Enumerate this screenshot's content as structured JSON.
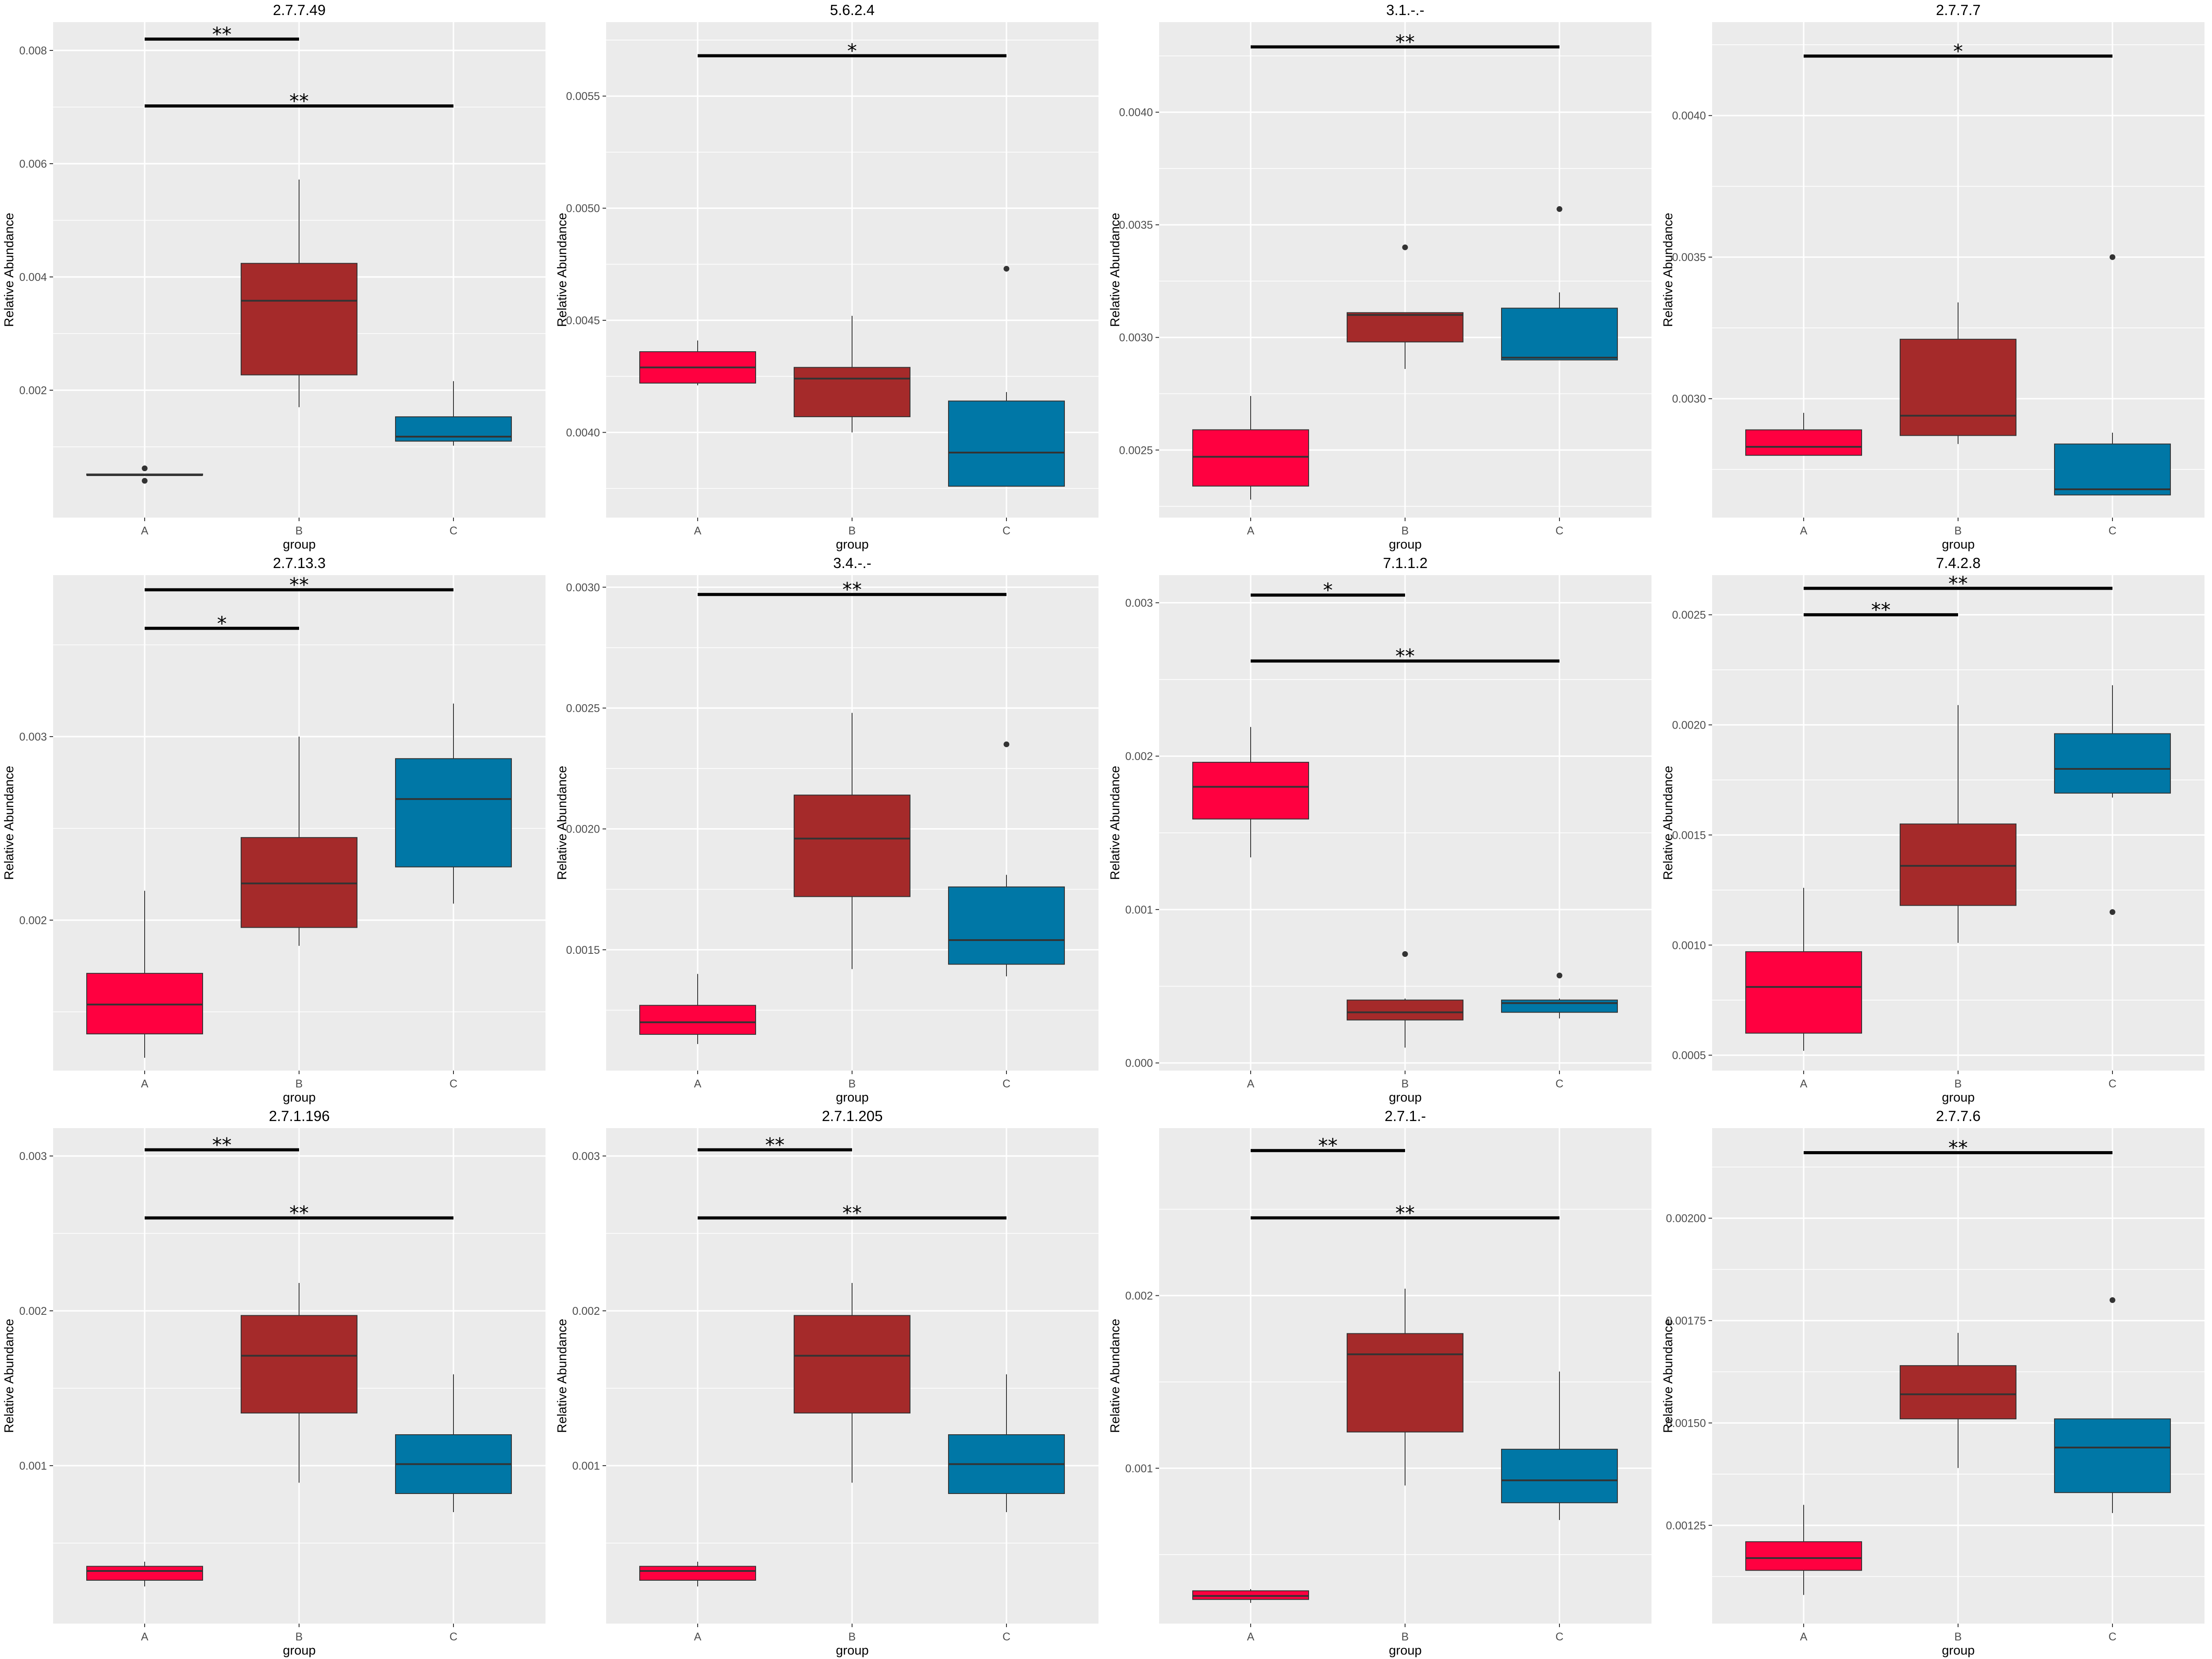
{
  "colors": {
    "A": "#ff0040",
    "B": "#a52a2a",
    "C": "#0077a6",
    "panel_bg": "#ebebeb",
    "grid": "#ffffff",
    "text": "#4d4d4d",
    "line": "#000000"
  },
  "x_label": "group",
  "y_label": "Relative Abundance",
  "chart_data": [
    {
      "type": "box",
      "title": "2.7.7.49",
      "categories": [
        "A",
        "B",
        "C"
      ],
      "ylim": [
        -0.00025,
        0.0085
      ],
      "yticks": [
        {
          "v": 0.002,
          "label": "0.002"
        },
        {
          "v": 0.004,
          "label": "0.004"
        },
        {
          "v": 0.006,
          "label": "0.006"
        },
        {
          "v": 0.008,
          "label": "0.008"
        }
      ],
      "boxes": [
        {
          "group": "A",
          "min": 0.0005,
          "q1": 0.0005,
          "median": 0.0005,
          "q3": 0.00052,
          "max": 0.00052,
          "outliers": [
            0.00062,
            0.0004
          ]
        },
        {
          "group": "B",
          "min": 0.0017,
          "q1": 0.00227,
          "median": 0.00358,
          "q3": 0.00424,
          "max": 0.00572,
          "outliers": []
        },
        {
          "group": "C",
          "min": 0.00102,
          "q1": 0.0011,
          "median": 0.00118,
          "q3": 0.00153,
          "max": 0.00216,
          "outliers": []
        }
      ],
      "brackets": [
        {
          "from": "A",
          "to": "B",
          "y": 0.0082,
          "label": "**"
        },
        {
          "from": "A",
          "to": "C",
          "y": 0.00702,
          "label": "**"
        }
      ]
    },
    {
      "type": "box",
      "title": "5.6.2.4",
      "categories": [
        "A",
        "B",
        "C"
      ],
      "ylim": [
        0.00362,
        0.00583
      ],
      "yticks": [
        {
          "v": 0.004,
          "label": "0.0040"
        },
        {
          "v": 0.0045,
          "label": "0.0045"
        },
        {
          "v": 0.005,
          "label": "0.0050"
        },
        {
          "v": 0.0055,
          "label": "0.0055"
        }
      ],
      "boxes": [
        {
          "group": "A",
          "min": 0.00421,
          "q1": 0.00422,
          "median": 0.00429,
          "q3": 0.00436,
          "max": 0.00441,
          "outliers": []
        },
        {
          "group": "B",
          "min": 0.004,
          "q1": 0.00407,
          "median": 0.00424,
          "q3": 0.00429,
          "max": 0.00452,
          "outliers": []
        },
        {
          "group": "C",
          "min": 0.00376,
          "q1": 0.00376,
          "median": 0.00391,
          "q3": 0.00414,
          "max": 0.00418,
          "outliers": [
            0.00473
          ]
        }
      ],
      "brackets": [
        {
          "from": "A",
          "to": "C",
          "y": 0.00568,
          "label": "*"
        }
      ]
    },
    {
      "type": "box",
      "title": "3.1.-.-",
      "categories": [
        "A",
        "B",
        "C"
      ],
      "ylim": [
        0.0022,
        0.0044
      ],
      "yticks": [
        {
          "v": 0.0025,
          "label": "0.0025"
        },
        {
          "v": 0.003,
          "label": "0.0030"
        },
        {
          "v": 0.0035,
          "label": "0.0035"
        },
        {
          "v": 0.004,
          "label": "0.0040"
        }
      ],
      "boxes": [
        {
          "group": "A",
          "min": 0.00228,
          "q1": 0.00234,
          "median": 0.00247,
          "q3": 0.00259,
          "max": 0.00274,
          "outliers": []
        },
        {
          "group": "B",
          "min": 0.00286,
          "q1": 0.00298,
          "median": 0.0031,
          "q3": 0.00311,
          "max": 0.00311,
          "outliers": [
            0.0034
          ]
        },
        {
          "group": "C",
          "min": 0.0029,
          "q1": 0.0029,
          "median": 0.00291,
          "q3": 0.00313,
          "max": 0.0032,
          "outliers": [
            0.00357
          ]
        }
      ],
      "brackets": [
        {
          "from": "A",
          "to": "C",
          "y": 0.00429,
          "label": "**"
        }
      ]
    },
    {
      "type": "box",
      "title": "2.7.7.7",
      "categories": [
        "A",
        "B",
        "C"
      ],
      "ylim": [
        0.00258,
        0.00433
      ],
      "yticks": [
        {
          "v": 0.003,
          "label": "0.0030"
        },
        {
          "v": 0.0035,
          "label": "0.0035"
        },
        {
          "v": 0.004,
          "label": "0.0040"
        }
      ],
      "boxes": [
        {
          "group": "A",
          "min": 0.0028,
          "q1": 0.0028,
          "median": 0.00283,
          "q3": 0.00289,
          "max": 0.00295,
          "outliers": []
        },
        {
          "group": "B",
          "min": 0.00284,
          "q1": 0.00287,
          "median": 0.00294,
          "q3": 0.00321,
          "max": 0.00334,
          "outliers": []
        },
        {
          "group": "C",
          "min": 0.00266,
          "q1": 0.00266,
          "median": 0.00268,
          "q3": 0.00284,
          "max": 0.00288,
          "outliers": [
            0.0035
          ]
        }
      ],
      "brackets": [
        {
          "from": "A",
          "to": "C",
          "y": 0.00421,
          "label": "*"
        }
      ]
    },
    {
      "type": "box",
      "title": "2.7.13.3",
      "categories": [
        "A",
        "B",
        "C"
      ],
      "ylim": [
        0.00118,
        0.00388
      ],
      "yticks": [
        {
          "v": 0.002,
          "label": "0.002"
        },
        {
          "v": 0.003,
          "label": "0.003"
        }
      ],
      "boxes": [
        {
          "group": "A",
          "min": 0.00125,
          "q1": 0.00138,
          "median": 0.00154,
          "q3": 0.00171,
          "max": 0.00216,
          "outliers": []
        },
        {
          "group": "B",
          "min": 0.00186,
          "q1": 0.00196,
          "median": 0.0022,
          "q3": 0.00245,
          "max": 0.003,
          "outliers": []
        },
        {
          "group": "C",
          "min": 0.00209,
          "q1": 0.00229,
          "median": 0.00266,
          "q3": 0.00288,
          "max": 0.00318,
          "outliers": []
        }
      ],
      "brackets": [
        {
          "from": "A",
          "to": "C",
          "y": 0.0038,
          "label": "**"
        },
        {
          "from": "A",
          "to": "B",
          "y": 0.00359,
          "label": "*"
        }
      ]
    },
    {
      "type": "box",
      "title": "3.4.-.-",
      "categories": [
        "A",
        "B",
        "C"
      ],
      "ylim": [
        0.001,
        0.00305
      ],
      "yticks": [
        {
          "v": 0.0015,
          "label": "0.0015"
        },
        {
          "v": 0.002,
          "label": "0.0020"
        },
        {
          "v": 0.0025,
          "label": "0.0025"
        },
        {
          "v": 0.003,
          "label": "0.0030"
        }
      ],
      "boxes": [
        {
          "group": "A",
          "min": 0.00111,
          "q1": 0.00115,
          "median": 0.0012,
          "q3": 0.00127,
          "max": 0.0014,
          "outliers": []
        },
        {
          "group": "B",
          "min": 0.00142,
          "q1": 0.00172,
          "median": 0.00196,
          "q3": 0.00214,
          "max": 0.00248,
          "outliers": []
        },
        {
          "group": "C",
          "min": 0.00139,
          "q1": 0.00144,
          "median": 0.00154,
          "q3": 0.00176,
          "max": 0.00181,
          "outliers": [
            0.00235
          ]
        }
      ],
      "brackets": [
        {
          "from": "A",
          "to": "C",
          "y": 0.00297,
          "label": "**"
        }
      ]
    },
    {
      "type": "box",
      "title": "7.1.1.2",
      "categories": [
        "A",
        "B",
        "C"
      ],
      "ylim": [
        -5e-05,
        0.00318
      ],
      "yticks": [
        {
          "v": 0.0,
          "label": "0.000"
        },
        {
          "v": 0.001,
          "label": "0.001"
        },
        {
          "v": 0.002,
          "label": "0.002"
        },
        {
          "v": 0.003,
          "label": "0.003"
        }
      ],
      "boxes": [
        {
          "group": "A",
          "min": 0.00134,
          "q1": 0.00159,
          "median": 0.0018,
          "q3": 0.00196,
          "max": 0.00219,
          "outliers": []
        },
        {
          "group": "B",
          "min": 0.0001,
          "q1": 0.00028,
          "median": 0.00033,
          "q3": 0.00041,
          "max": 0.00042,
          "outliers": [
            0.00071
          ]
        },
        {
          "group": "C",
          "min": 0.00029,
          "q1": 0.00033,
          "median": 0.00039,
          "q3": 0.00041,
          "max": 0.00042,
          "outliers": [
            0.00057
          ]
        }
      ],
      "brackets": [
        {
          "from": "A",
          "to": "B",
          "y": 0.00305,
          "label": "*"
        },
        {
          "from": "A",
          "to": "C",
          "y": 0.00262,
          "label": "**"
        }
      ]
    },
    {
      "type": "box",
      "title": "7.4.2.8",
      "categories": [
        "A",
        "B",
        "C"
      ],
      "ylim": [
        0.00043,
        0.00268
      ],
      "yticks": [
        {
          "v": 0.0005,
          "label": "0.0005"
        },
        {
          "v": 0.001,
          "label": "0.0010"
        },
        {
          "v": 0.0015,
          "label": "0.0015"
        },
        {
          "v": 0.002,
          "label": "0.0020"
        },
        {
          "v": 0.0025,
          "label": "0.0025"
        }
      ],
      "boxes": [
        {
          "group": "A",
          "min": 0.00052,
          "q1": 0.0006,
          "median": 0.00081,
          "q3": 0.00097,
          "max": 0.00126,
          "outliers": []
        },
        {
          "group": "B",
          "min": 0.00101,
          "q1": 0.00118,
          "median": 0.00136,
          "q3": 0.00155,
          "max": 0.00209,
          "outliers": []
        },
        {
          "group": "C",
          "min": 0.00167,
          "q1": 0.00169,
          "median": 0.0018,
          "q3": 0.00196,
          "max": 0.00218,
          "outliers": [
            0.00115
          ]
        }
      ],
      "brackets": [
        {
          "from": "A",
          "to": "C",
          "y": 0.00262,
          "label": "**"
        },
        {
          "from": "A",
          "to": "B",
          "y": 0.0025,
          "label": "**"
        }
      ]
    },
    {
      "type": "box",
      "title": "2.7.1.196",
      "categories": [
        "A",
        "B",
        "C"
      ],
      "ylim": [
        -2e-05,
        0.00318
      ],
      "yticks": [
        {
          "v": 0.001,
          "label": "0.001"
        },
        {
          "v": 0.002,
          "label": "0.002"
        },
        {
          "v": 0.003,
          "label": "0.003"
        }
      ],
      "boxes": [
        {
          "group": "A",
          "min": 0.00022,
          "q1": 0.00026,
          "median": 0.00032,
          "q3": 0.00035,
          "max": 0.00038,
          "outliers": []
        },
        {
          "group": "B",
          "min": 0.00089,
          "q1": 0.00134,
          "median": 0.00171,
          "q3": 0.00197,
          "max": 0.00218,
          "outliers": []
        },
        {
          "group": "C",
          "min": 0.0007,
          "q1": 0.00082,
          "median": 0.00101,
          "q3": 0.0012,
          "max": 0.00159,
          "outliers": []
        }
      ],
      "brackets": [
        {
          "from": "A",
          "to": "B",
          "y": 0.00304,
          "label": "**"
        },
        {
          "from": "A",
          "to": "C",
          "y": 0.0026,
          "label": "**"
        }
      ]
    },
    {
      "type": "box",
      "title": "2.7.1.205",
      "categories": [
        "A",
        "B",
        "C"
      ],
      "ylim": [
        -2e-05,
        0.00318
      ],
      "yticks": [
        {
          "v": 0.001,
          "label": "0.001"
        },
        {
          "v": 0.002,
          "label": "0.002"
        },
        {
          "v": 0.003,
          "label": "0.003"
        }
      ],
      "boxes": [
        {
          "group": "A",
          "min": 0.00022,
          "q1": 0.00026,
          "median": 0.00032,
          "q3": 0.00035,
          "max": 0.00038,
          "outliers": []
        },
        {
          "group": "B",
          "min": 0.00089,
          "q1": 0.00134,
          "median": 0.00171,
          "q3": 0.00197,
          "max": 0.00218,
          "outliers": []
        },
        {
          "group": "C",
          "min": 0.0007,
          "q1": 0.00082,
          "median": 0.00101,
          "q3": 0.0012,
          "max": 0.00159,
          "outliers": []
        }
      ],
      "brackets": [
        {
          "from": "A",
          "to": "B",
          "y": 0.00304,
          "label": "**"
        },
        {
          "from": "A",
          "to": "C",
          "y": 0.0026,
          "label": "**"
        }
      ]
    },
    {
      "type": "box",
      "title": "2.7.1.-",
      "categories": [
        "A",
        "B",
        "C"
      ],
      "ylim": [
        0.0001,
        0.00297
      ],
      "yticks": [
        {
          "v": 0.001,
          "label": "0.001"
        },
        {
          "v": 0.002,
          "label": "0.002"
        }
      ],
      "boxes": [
        {
          "group": "A",
          "min": 0.00022,
          "q1": 0.00024,
          "median": 0.00026,
          "q3": 0.00029,
          "max": 0.0003,
          "outliers": []
        },
        {
          "group": "B",
          "min": 0.0009,
          "q1": 0.00121,
          "median": 0.00166,
          "q3": 0.00178,
          "max": 0.00204,
          "outliers": []
        },
        {
          "group": "C",
          "min": 0.0007,
          "q1": 0.0008,
          "median": 0.00093,
          "q3": 0.00111,
          "max": 0.00156,
          "outliers": []
        }
      ],
      "brackets": [
        {
          "from": "A",
          "to": "B",
          "y": 0.00284,
          "label": "**"
        },
        {
          "from": "A",
          "to": "C",
          "y": 0.00245,
          "label": "**"
        }
      ]
    },
    {
      "type": "box",
      "title": "2.7.7.6",
      "categories": [
        "A",
        "B",
        "C"
      ],
      "ylim": [
        0.00101,
        0.00222
      ],
      "yticks": [
        {
          "v": 0.00125,
          "label": "0.00125"
        },
        {
          "v": 0.0015,
          "label": "0.00150"
        },
        {
          "v": 0.00175,
          "label": "0.00175"
        },
        {
          "v": 0.002,
          "label": "0.00200"
        }
      ],
      "boxes": [
        {
          "group": "A",
          "min": 0.00108,
          "q1": 0.00114,
          "median": 0.00117,
          "q3": 0.00121,
          "max": 0.0013,
          "outliers": []
        },
        {
          "group": "B",
          "min": 0.00139,
          "q1": 0.00151,
          "median": 0.00157,
          "q3": 0.00164,
          "max": 0.00172,
          "outliers": []
        },
        {
          "group": "C",
          "min": 0.00128,
          "q1": 0.00133,
          "median": 0.00144,
          "q3": 0.00151,
          "max": 0.00151,
          "outliers": [
            0.0018
          ]
        }
      ],
      "brackets": [
        {
          "from": "A",
          "to": "C",
          "y": 0.00216,
          "label": "**"
        }
      ]
    }
  ]
}
